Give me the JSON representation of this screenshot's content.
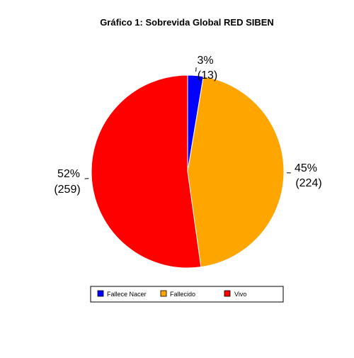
{
  "chart_data": {
    "type": "pie",
    "title": "Gráfico 1: Sobrevida Global RED SIBEN",
    "categories": [
      "Fallece Nacer",
      "Fallecido",
      "Vivo"
    ],
    "values": [
      13,
      224,
      259
    ],
    "percent_labels": [
      "3%",
      "45%",
      "52%"
    ],
    "count_labels": [
      "(13)",
      "(224)",
      "(259)"
    ],
    "colors": [
      "#0000ff",
      "#ffa500",
      "#ff0000"
    ],
    "start_angle_deg": 90,
    "direction": "clockwise",
    "legend": {
      "placement": "bottom",
      "entries": [
        "Fallece Nacer",
        "Fallecido",
        "Vivo"
      ]
    }
  }
}
